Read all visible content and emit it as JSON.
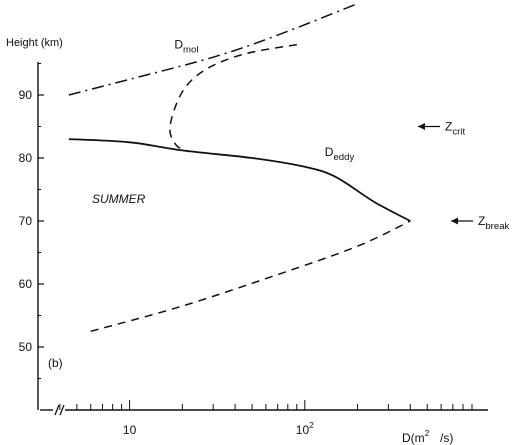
{
  "chart_data": {
    "type": "line",
    "ylabel": "Height (km)",
    "xlabel_main": "D(m",
    "xlabel_sup": "2",
    "xlabel_end": "/s)",
    "x_scale": "log",
    "xlim": [
      3,
      1000
    ],
    "ylim": [
      40,
      100
    ],
    "x_ticks": [
      {
        "value": 10,
        "label": "10"
      },
      {
        "value": 100,
        "label": "10",
        "sup": "2"
      }
    ],
    "y_ticks": [
      50,
      60,
      70,
      80,
      90
    ],
    "season_label": "SUMMER",
    "panel_label": "(b)",
    "series": [
      {
        "name": "D",
        "name_sub": "mol",
        "style": "dash-dot",
        "points": [
          [
            4.5,
            90
          ],
          [
            10,
            92.5
          ],
          [
            30,
            96
          ],
          [
            70,
            99.5
          ],
          [
            200,
            104.5
          ]
        ]
      },
      {
        "name": "D",
        "name_sub": "eddy",
        "style": "solid",
        "points": [
          [
            4.5,
            83
          ],
          [
            10,
            82.5
          ],
          [
            20,
            81.2
          ],
          [
            50,
            80
          ],
          [
            100,
            78.6
          ],
          [
            150,
            77
          ],
          [
            250,
            73
          ],
          [
            400,
            70
          ]
        ]
      },
      {
        "name": "",
        "style": "dashed",
        "points": [
          [
            90,
            98
          ],
          [
            45,
            96.5
          ],
          [
            27,
            94
          ],
          [
            20,
            90.5
          ],
          [
            17,
            85
          ],
          [
            18.5,
            82
          ],
          [
            22,
            81
          ]
        ]
      },
      {
        "name": "",
        "style": "dashed",
        "points": [
          [
            6,
            52.5
          ],
          [
            20,
            56.5
          ],
          [
            70,
            61.5
          ],
          [
            200,
            66
          ],
          [
            400,
            70
          ]
        ]
      }
    ],
    "annotations": [
      {
        "text": "Z",
        "sub": "crit",
        "height": 85
      },
      {
        "text": "Z",
        "sub": "break",
        "height": 70
      }
    ]
  }
}
